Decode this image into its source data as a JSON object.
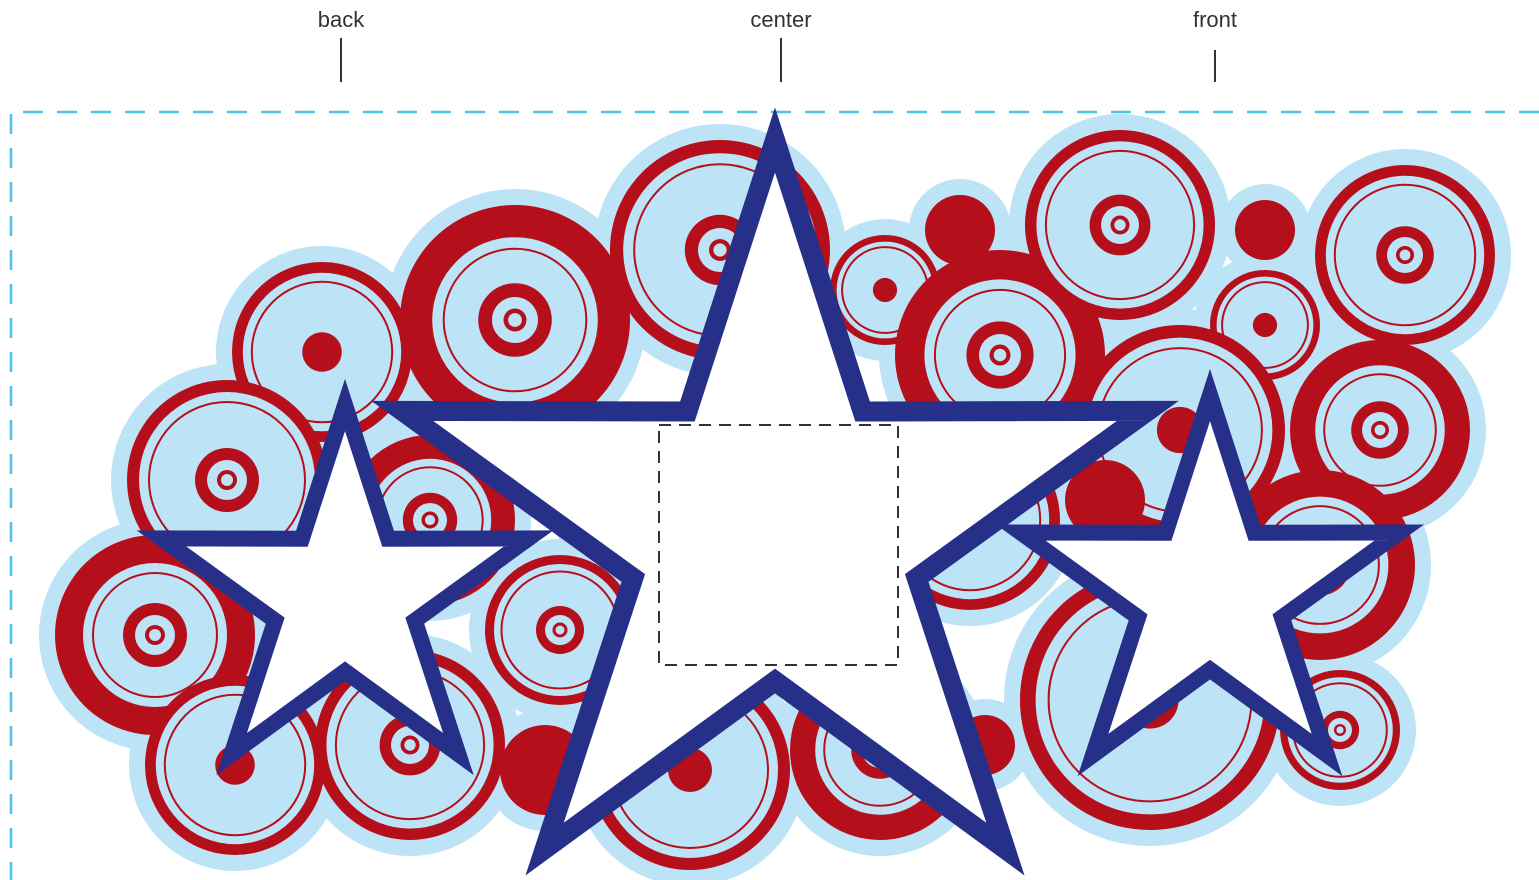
{
  "labels": [
    "back",
    "center",
    "front"
  ]
}
